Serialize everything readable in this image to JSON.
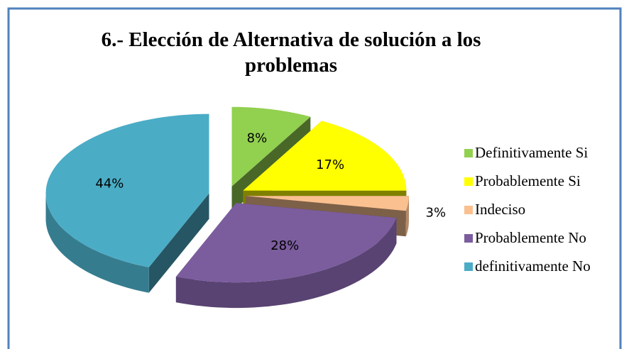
{
  "chart_data": {
    "type": "pie3d",
    "title": "6.- Elección de Alternativa de solución a los problemas",
    "categories": [
      "Definitivamente Si",
      "Probablemente Si",
      "Indeciso",
      "Probablemente No",
      "definitivamente No"
    ],
    "values": [
      8,
      17,
      3,
      28,
      44
    ],
    "value_labels": [
      "8%",
      "17%",
      "3%",
      "28%",
      "44%"
    ],
    "colors": [
      "#92d050",
      "#ffff00",
      "#fac090",
      "#7b5d9e",
      "#4bacc6"
    ],
    "legend": "right"
  }
}
